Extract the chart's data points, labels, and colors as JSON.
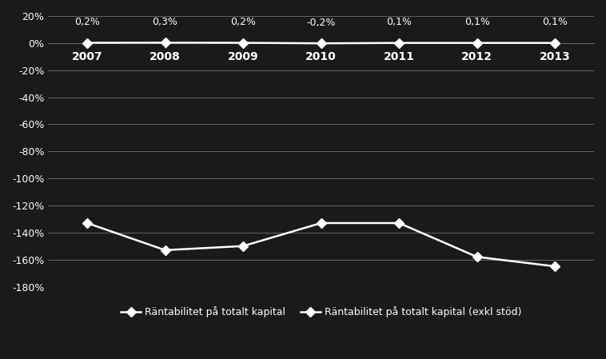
{
  "years": [
    2007,
    2008,
    2009,
    2010,
    2011,
    2012,
    2013
  ],
  "series1_name": "Räntabilitet på totalt kapital",
  "series1_values": [
    0.002,
    0.003,
    0.002,
    -0.002,
    0.001,
    0.001,
    0.001
  ],
  "series1_labels": [
    "0,2%",
    "0,3%",
    "0,2%",
    "-0,2%",
    "0,1%",
    "0,1%",
    "0,1%"
  ],
  "series2_name": "Räntabilitet på totalt kapital (exkl stöd)",
  "series2_values": [
    -1.33,
    -1.53,
    -1.5,
    -1.33,
    -1.33,
    -1.58,
    -1.65
  ],
  "background_color": "#1a1a1a",
  "text_color": "#ffffff",
  "grid_color": "#666666",
  "line_color": "#ffffff",
  "marker": "D",
  "ylim_min": -1.8,
  "ylim_max": 0.2,
  "yticks": [
    0.2,
    0.0,
    -0.2,
    -0.4,
    -0.6,
    -0.8,
    -1.0,
    -1.2,
    -1.4,
    -1.6,
    -1.8
  ],
  "ytick_labels": [
    "20%",
    "0%",
    "-20%",
    "-40%",
    "-60%",
    "-80%",
    "-100%",
    "-120%",
    "-140%",
    "-160%",
    "-180%"
  ]
}
